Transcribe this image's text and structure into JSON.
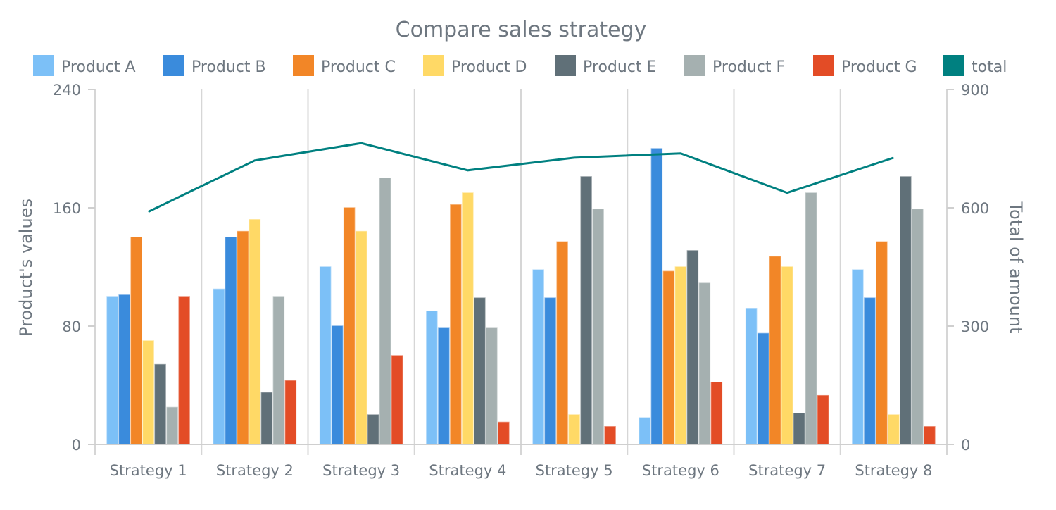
{
  "chart_data": {
    "type": "bar",
    "title": "Compare sales strategy",
    "categories": [
      "Strategy 1",
      "Strategy 2",
      "Strategy 3",
      "Strategy 4",
      "Strategy 5",
      "Strategy 6",
      "Strategy 7",
      "Strategy 8"
    ],
    "ylabel": "Product's values",
    "y2label": "Total of amount",
    "ylim": [
      0,
      240
    ],
    "y2lim": [
      0,
      900
    ],
    "yticks": [
      0,
      80,
      160,
      240
    ],
    "y2ticks": [
      0,
      300,
      600,
      900
    ],
    "legend_position": "top",
    "grid": "vertical category separators",
    "series": [
      {
        "name": "Product A",
        "color": "#7cc0f7",
        "values": [
          100,
          105,
          120,
          90,
          118,
          18,
          92,
          118
        ]
      },
      {
        "name": "Product B",
        "color": "#3a8bdc",
        "values": [
          101,
          140,
          80,
          79,
          99,
          200,
          75,
          99
        ]
      },
      {
        "name": "Product C",
        "color": "#f28627",
        "values": [
          140,
          144,
          160,
          162,
          137,
          117,
          127,
          137
        ]
      },
      {
        "name": "Product D",
        "color": "#ffd966",
        "values": [
          70,
          152,
          144,
          170,
          20,
          120,
          120,
          20
        ]
      },
      {
        "name": "Product E",
        "color": "#607078",
        "values": [
          54,
          35,
          20,
          99,
          181,
          131,
          21,
          181
        ]
      },
      {
        "name": "Product F",
        "color": "#a5b0b0",
        "values": [
          25,
          100,
          180,
          79,
          159,
          109,
          170,
          159
        ]
      },
      {
        "name": "Product G",
        "color": "#e34c26",
        "values": [
          100,
          43,
          60,
          15,
          12,
          42,
          33,
          12
        ]
      }
    ],
    "line_series": {
      "name": "total",
      "color": "#008080",
      "axis": "right",
      "values": [
        590,
        720,
        764,
        695,
        727,
        738,
        638,
        727
      ]
    }
  }
}
